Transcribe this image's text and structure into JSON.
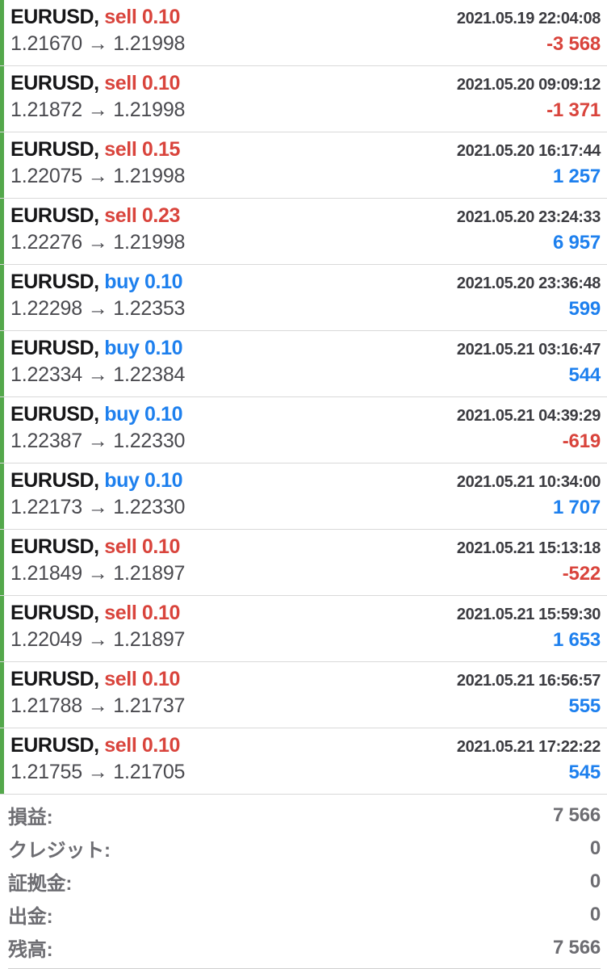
{
  "colors": {
    "sell_red": "#d9443c",
    "buy_blue": "#1e80ee",
    "profit_positive_blue": "#1e80ee",
    "profit_negative_red": "#d9443c",
    "open_trade_marker_green": "#54a84b",
    "symbol_text": "#161618",
    "time_text": "#3c3c41",
    "price_text": "#4a4a4f",
    "summary_text": "#6d6d72"
  },
  "trades": [
    {
      "symbol": "EURUSD,",
      "side": "sell 0.10",
      "side_type": "sell",
      "time": "2021.05.19 22:04:08",
      "prices": "1.21670 → 1.21998",
      "profit": "-3 568",
      "profit_type": "negative"
    },
    {
      "symbol": "EURUSD,",
      "side": "sell 0.10",
      "side_type": "sell",
      "time": "2021.05.20 09:09:12",
      "prices": "1.21872 → 1.21998",
      "profit": "-1 371",
      "profit_type": "negative"
    },
    {
      "symbol": "EURUSD,",
      "side": "sell 0.15",
      "side_type": "sell",
      "time": "2021.05.20 16:17:44",
      "prices": "1.22075 → 1.21998",
      "profit": "1 257",
      "profit_type": "positive"
    },
    {
      "symbol": "EURUSD,",
      "side": "sell 0.23",
      "side_type": "sell",
      "time": "2021.05.20 23:24:33",
      "prices": "1.22276 → 1.21998",
      "profit": "6 957",
      "profit_type": "positive"
    },
    {
      "symbol": "EURUSD,",
      "side": "buy 0.10",
      "side_type": "buy",
      "time": "2021.05.20 23:36:48",
      "prices": "1.22298 → 1.22353",
      "profit": "599",
      "profit_type": "positive"
    },
    {
      "symbol": "EURUSD,",
      "side": "buy 0.10",
      "side_type": "buy",
      "time": "2021.05.21 03:16:47",
      "prices": "1.22334 → 1.22384",
      "profit": "544",
      "profit_type": "positive"
    },
    {
      "symbol": "EURUSD,",
      "side": "buy 0.10",
      "side_type": "buy",
      "time": "2021.05.21 04:39:29",
      "prices": "1.22387 → 1.22330",
      "profit": "-619",
      "profit_type": "negative"
    },
    {
      "symbol": "EURUSD,",
      "side": "buy 0.10",
      "side_type": "buy",
      "time": "2021.05.21 10:34:00",
      "prices": "1.22173 → 1.22330",
      "profit": "1 707",
      "profit_type": "positive"
    },
    {
      "symbol": "EURUSD,",
      "side": "sell 0.10",
      "side_type": "sell",
      "time": "2021.05.21 15:13:18",
      "prices": "1.21849 → 1.21897",
      "profit": "-522",
      "profit_type": "negative"
    },
    {
      "symbol": "EURUSD,",
      "side": "sell 0.10",
      "side_type": "sell",
      "time": "2021.05.21 15:59:30",
      "prices": "1.22049 → 1.21897",
      "profit": "1 653",
      "profit_type": "positive"
    },
    {
      "symbol": "EURUSD,",
      "side": "sell 0.10",
      "side_type": "sell",
      "time": "2021.05.21 16:56:57",
      "prices": "1.21788 → 1.21737",
      "profit": "555",
      "profit_type": "positive"
    },
    {
      "symbol": "EURUSD,",
      "side": "sell 0.10",
      "side_type": "sell",
      "time": "2021.05.21 17:22:22",
      "prices": "1.21755 → 1.21705",
      "profit": "545",
      "profit_type": "positive"
    }
  ],
  "summary": {
    "rows": [
      {
        "label": "損益:",
        "value": "7 566"
      },
      {
        "label": "クレジット:",
        "value": "0"
      },
      {
        "label": "証拠金:",
        "value": "0"
      },
      {
        "label": "出金:",
        "value": "0"
      },
      {
        "label": "残高:",
        "value": "7 566"
      }
    ]
  }
}
